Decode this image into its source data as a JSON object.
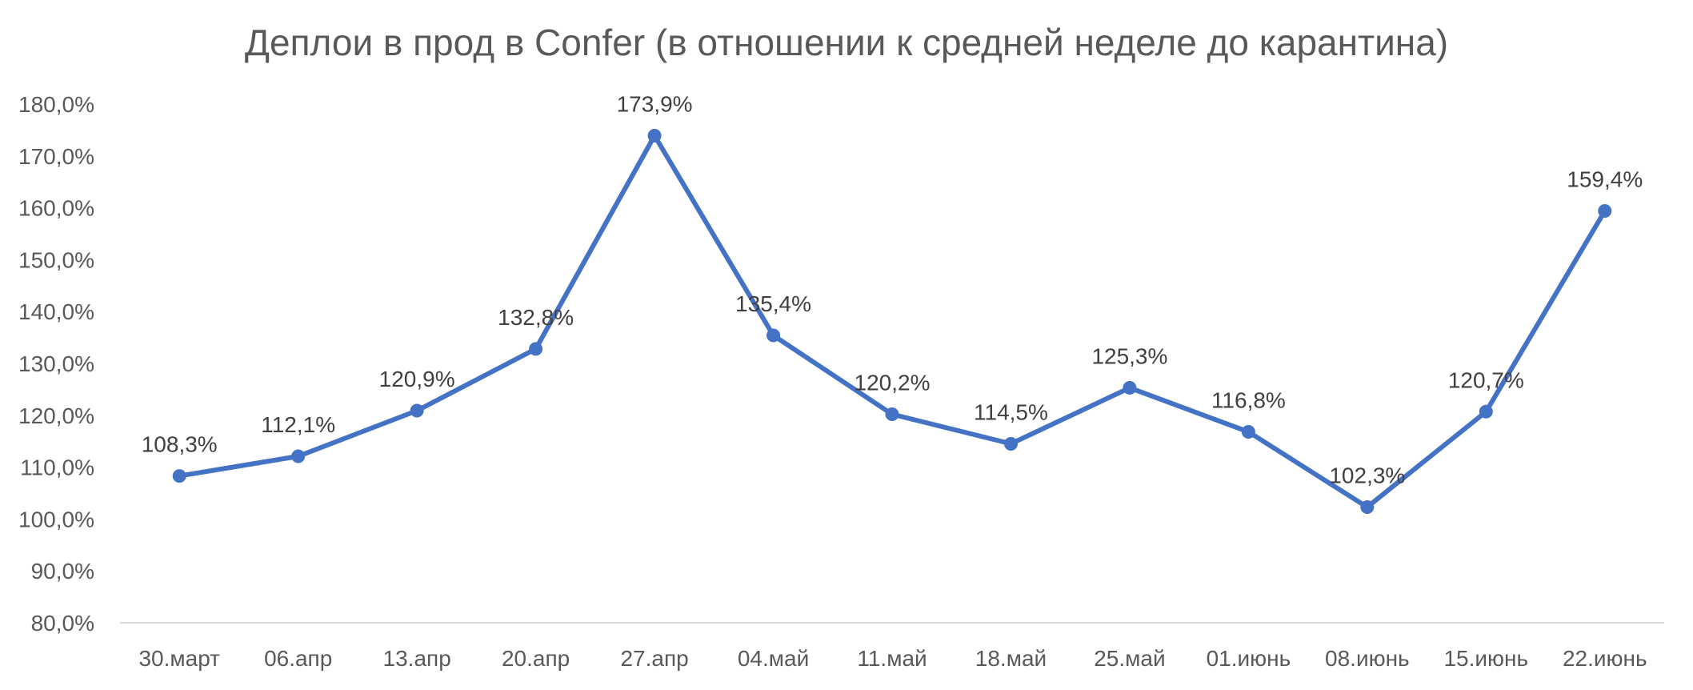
{
  "chart_data": {
    "type": "line",
    "title": "Деплои в прод в Confer (в отношении к средней неделе до карантина)",
    "xlabel": "",
    "ylabel": "",
    "categories": [
      "30.март",
      "06.апр",
      "13.апр",
      "20.апр",
      "27.апр",
      "04.май",
      "11.май",
      "18.май",
      "25.май",
      "01.июнь",
      "08.июнь",
      "15.июнь",
      "22.июнь"
    ],
    "series": [
      {
        "values": [
          108.3,
          112.1,
          120.9,
          132.8,
          173.9,
          135.4,
          120.2,
          114.5,
          125.3,
          116.8,
          102.3,
          120.7,
          159.4
        ],
        "labels": [
          "108,3%",
          "112,1%",
          "120,9%",
          "132,8%",
          "173,9%",
          "135,4%",
          "120,2%",
          "114,5%",
          "125,3%",
          "116,8%",
          "102,3%",
          "120,7%",
          "159,4%"
        ],
        "color": "#4472C4"
      }
    ],
    "ylim": [
      80,
      180
    ],
    "yticks": [
      80,
      90,
      100,
      110,
      120,
      130,
      140,
      150,
      160,
      170,
      180
    ],
    "ytick_labels": [
      "80,0%",
      "90,0%",
      "100,0%",
      "110,0%",
      "120,0%",
      "130,0%",
      "140,0%",
      "150,0%",
      "160,0%",
      "170,0%",
      "180,0%"
    ],
    "grid": false,
    "legend": "none",
    "axis_color": "#d9d9d9"
  }
}
